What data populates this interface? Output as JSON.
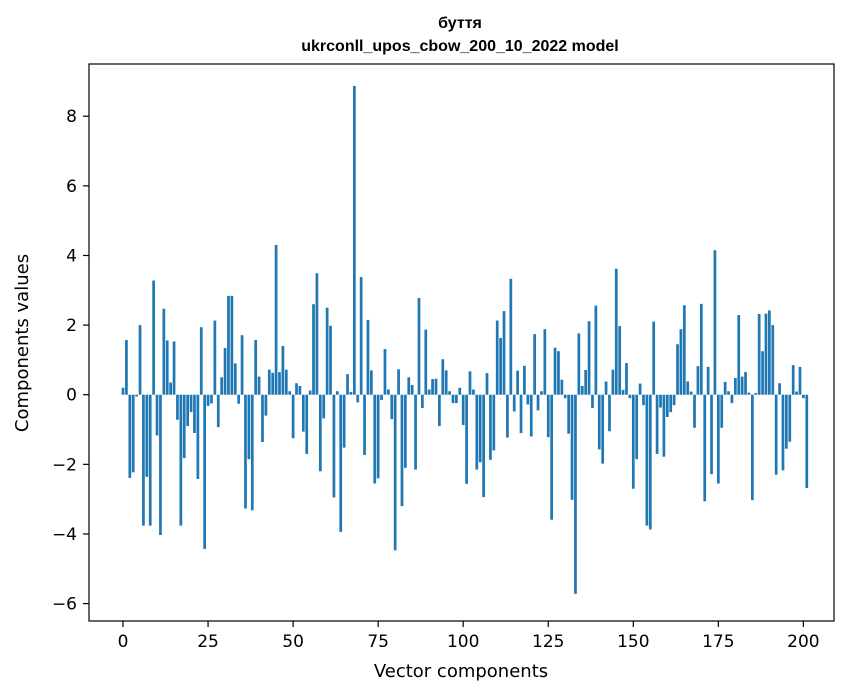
{
  "chart_data": {
    "type": "bar",
    "title": "буття",
    "subtitle": "ukrconll_upos_cbow_200_10_2022 model",
    "xlabel": "Vector components",
    "ylabel": "Components values",
    "xlim": [
      -10,
      209
    ],
    "ylim": [
      -6.5,
      9.5
    ],
    "xticks": [
      0,
      25,
      50,
      75,
      100,
      125,
      150,
      175,
      200
    ],
    "yticks": [
      -6,
      -4,
      -2,
      0,
      2,
      4,
      6,
      8
    ],
    "xtick_labels": [
      "0",
      "25",
      "50",
      "75",
      "100",
      "125",
      "150",
      "175",
      "200"
    ],
    "ytick_labels": [
      "−6",
      "−4",
      "−2",
      "0",
      "2",
      "4",
      "6",
      "8"
    ],
    "bar_color": "#1f77b4",
    "grid": false,
    "values": [
      0.2,
      1.57,
      -2.39,
      -2.23,
      -0.05,
      2.0,
      -3.76,
      -2.36,
      -3.76,
      3.28,
      -1.17,
      -4.03,
      2.47,
      1.56,
      0.35,
      1.53,
      -0.72,
      -3.76,
      -1.82,
      -0.9,
      -0.5,
      -1.1,
      -2.42,
      1.94,
      -4.43,
      -0.32,
      -0.25,
      2.13,
      -0.93,
      0.5,
      1.34,
      2.84,
      2.84,
      0.9,
      -0.26,
      1.71,
      -3.27,
      -1.85,
      -3.32,
      1.57,
      0.52,
      -1.36,
      -0.6,
      0.72,
      0.63,
      4.3,
      0.65,
      1.4,
      0.72,
      0.1,
      -1.25,
      0.33,
      0.25,
      -1.06,
      -1.7,
      0.12,
      2.6,
      3.49,
      -2.2,
      -0.68,
      2.5,
      1.98,
      -2.95,
      0.1,
      -3.94,
      -1.52,
      0.59,
      0.08,
      8.87,
      -0.22,
      3.38,
      -1.73,
      2.15,
      0.7,
      -2.55,
      -2.4,
      -0.15,
      1.31,
      0.15,
      -0.7,
      -4.47,
      0.73,
      -3.2,
      -2.1,
      0.5,
      0.28,
      -2.15,
      2.78,
      -0.38,
      1.87,
      0.15,
      0.45,
      0.46,
      -0.9,
      1.02,
      0.7,
      0.1,
      -0.24,
      -0.24,
      0.2,
      -0.87,
      -2.56,
      0.67,
      0.15,
      -2.15,
      -1.94,
      -2.94,
      0.62,
      -1.87,
      -1.6,
      2.13,
      1.63,
      2.4,
      -1.23,
      3.33,
      -0.48,
      0.69,
      -1.1,
      0.83,
      -0.28,
      -1.2,
      1.74,
      -0.45,
      0.1,
      1.88,
      -1.22,
      -3.59,
      1.35,
      1.25,
      0.43,
      -0.1,
      -1.12,
      -3.02,
      -5.72,
      1.76,
      0.25,
      0.71,
      2.11,
      -0.38,
      2.56,
      -1.57,
      -1.98,
      0.38,
      -1.05,
      0.72,
      3.62,
      1.97,
      0.14,
      0.91,
      -0.1,
      -2.7,
      -1.85,
      0.32,
      -0.3,
      -3.76,
      -3.87,
      2.1,
      -1.7,
      -0.37,
      -1.78,
      -0.64,
      -0.5,
      -0.3,
      1.45,
      1.88,
      2.57,
      0.38,
      0.09,
      -0.95,
      0.82,
      2.61,
      -3.06,
      0.8,
      -2.28,
      4.15,
      -2.55,
      -0.95,
      0.37,
      0.1,
      -0.24,
      0.48,
      2.29,
      0.52,
      0.65,
      0.06,
      -3.03,
      0.05,
      2.32,
      1.25,
      2.33,
      2.42,
      2.0,
      -2.3,
      0.33,
      -2.17,
      -1.55,
      -1.35,
      0.85,
      0.09,
      0.8,
      -0.1,
      -2.68
    ]
  }
}
